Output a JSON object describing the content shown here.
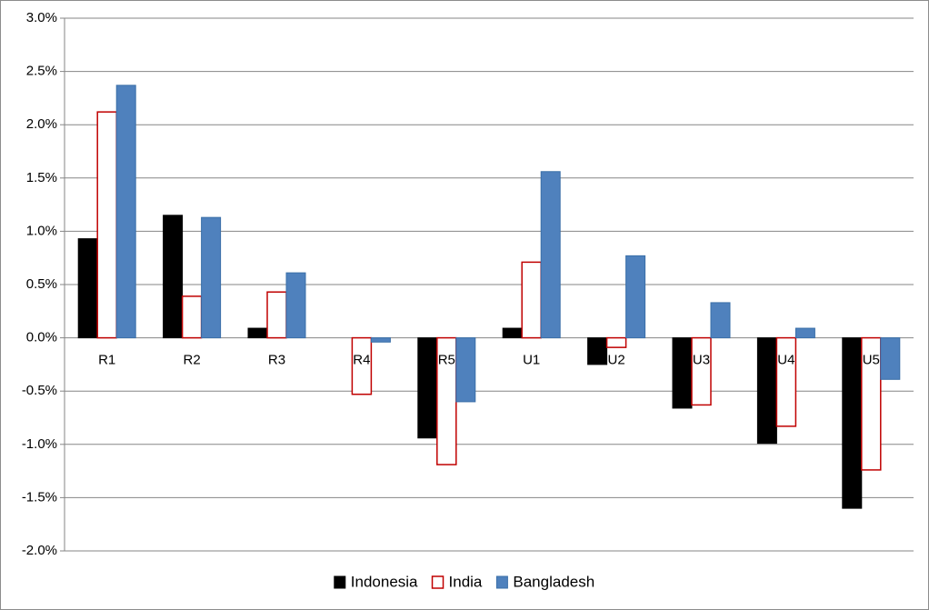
{
  "chart_data": {
    "type": "bar",
    "categories": [
      "R1",
      "R2",
      "R3",
      "R4",
      "R5",
      "U1",
      "U2",
      "U3",
      "U4",
      "U5"
    ],
    "series": [
      {
        "name": "Indonesia",
        "color": "#000000",
        "values": [
          0.93,
          1.15,
          0.09,
          0,
          -0.94,
          0.09,
          -0.25,
          -0.66,
          -0.99,
          -1.6
        ]
      },
      {
        "name": "India",
        "color": "#c00000",
        "outline": true,
        "values": [
          2.12,
          0.39,
          0.43,
          -0.53,
          -1.19,
          0.71,
          -0.09,
          -0.63,
          -0.83,
          -1.24
        ]
      },
      {
        "name": "Bangladesh",
        "color": "#4f81bd",
        "values": [
          2.37,
          1.13,
          0.61,
          -0.04,
          -0.6,
          1.56,
          0.77,
          0.33,
          0.09,
          -0.39
        ]
      }
    ],
    "ylim": [
      -2,
      3
    ],
    "yticks": [
      {
        "value": -2,
        "label": "-2.0%"
      },
      {
        "value": -1.5,
        "label": "-1.5%"
      },
      {
        "value": -1,
        "label": "-1.0%"
      },
      {
        "value": -0.5,
        "label": "-0.5%"
      },
      {
        "value": 0,
        "label": "0.0%"
      },
      {
        "value": 0.5,
        "label": "0.5%"
      },
      {
        "value": 1,
        "label": "1.0%"
      },
      {
        "value": 1.5,
        "label": "1.5%"
      },
      {
        "value": 2,
        "label": "2.0%"
      },
      {
        "value": 2.5,
        "label": "2.5%"
      },
      {
        "value": 3,
        "label": "3.0%"
      }
    ],
    "grid": true,
    "legend": "bottom"
  }
}
